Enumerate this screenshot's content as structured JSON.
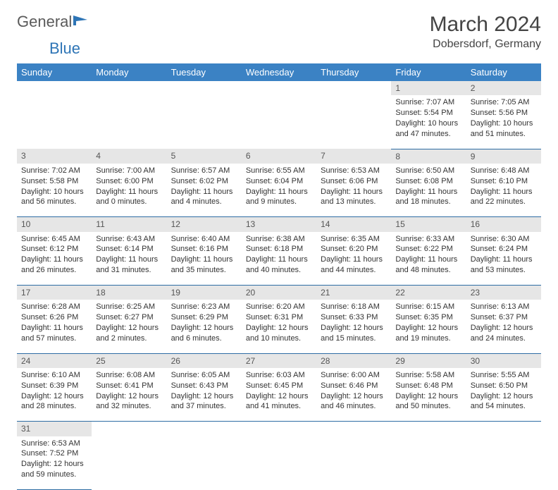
{
  "brand": {
    "part1": "General",
    "part2": "Blue"
  },
  "title": "March 2024",
  "location": "Dobersdorf, Germany",
  "colors": {
    "header_bg": "#3b82c4",
    "header_text": "#ffffff",
    "daynum_bg": "#e6e6e6",
    "row_border": "#2e6da4",
    "brand_gray": "#5a5a5a",
    "brand_blue": "#2e75b6"
  },
  "weekdays": [
    "Sunday",
    "Monday",
    "Tuesday",
    "Wednesday",
    "Thursday",
    "Friday",
    "Saturday"
  ],
  "weeks": [
    [
      null,
      null,
      null,
      null,
      null,
      {
        "n": "1",
        "sr": "Sunrise: 7:07 AM",
        "ss": "Sunset: 5:54 PM",
        "d1": "Daylight: 10 hours",
        "d2": "and 47 minutes."
      },
      {
        "n": "2",
        "sr": "Sunrise: 7:05 AM",
        "ss": "Sunset: 5:56 PM",
        "d1": "Daylight: 10 hours",
        "d2": "and 51 minutes."
      }
    ],
    [
      {
        "n": "3",
        "sr": "Sunrise: 7:02 AM",
        "ss": "Sunset: 5:58 PM",
        "d1": "Daylight: 10 hours",
        "d2": "and 56 minutes."
      },
      {
        "n": "4",
        "sr": "Sunrise: 7:00 AM",
        "ss": "Sunset: 6:00 PM",
        "d1": "Daylight: 11 hours",
        "d2": "and 0 minutes."
      },
      {
        "n": "5",
        "sr": "Sunrise: 6:57 AM",
        "ss": "Sunset: 6:02 PM",
        "d1": "Daylight: 11 hours",
        "d2": "and 4 minutes."
      },
      {
        "n": "6",
        "sr": "Sunrise: 6:55 AM",
        "ss": "Sunset: 6:04 PM",
        "d1": "Daylight: 11 hours",
        "d2": "and 9 minutes."
      },
      {
        "n": "7",
        "sr": "Sunrise: 6:53 AM",
        "ss": "Sunset: 6:06 PM",
        "d1": "Daylight: 11 hours",
        "d2": "and 13 minutes."
      },
      {
        "n": "8",
        "sr": "Sunrise: 6:50 AM",
        "ss": "Sunset: 6:08 PM",
        "d1": "Daylight: 11 hours",
        "d2": "and 18 minutes."
      },
      {
        "n": "9",
        "sr": "Sunrise: 6:48 AM",
        "ss": "Sunset: 6:10 PM",
        "d1": "Daylight: 11 hours",
        "d2": "and 22 minutes."
      }
    ],
    [
      {
        "n": "10",
        "sr": "Sunrise: 6:45 AM",
        "ss": "Sunset: 6:12 PM",
        "d1": "Daylight: 11 hours",
        "d2": "and 26 minutes."
      },
      {
        "n": "11",
        "sr": "Sunrise: 6:43 AM",
        "ss": "Sunset: 6:14 PM",
        "d1": "Daylight: 11 hours",
        "d2": "and 31 minutes."
      },
      {
        "n": "12",
        "sr": "Sunrise: 6:40 AM",
        "ss": "Sunset: 6:16 PM",
        "d1": "Daylight: 11 hours",
        "d2": "and 35 minutes."
      },
      {
        "n": "13",
        "sr": "Sunrise: 6:38 AM",
        "ss": "Sunset: 6:18 PM",
        "d1": "Daylight: 11 hours",
        "d2": "and 40 minutes."
      },
      {
        "n": "14",
        "sr": "Sunrise: 6:35 AM",
        "ss": "Sunset: 6:20 PM",
        "d1": "Daylight: 11 hours",
        "d2": "and 44 minutes."
      },
      {
        "n": "15",
        "sr": "Sunrise: 6:33 AM",
        "ss": "Sunset: 6:22 PM",
        "d1": "Daylight: 11 hours",
        "d2": "and 48 minutes."
      },
      {
        "n": "16",
        "sr": "Sunrise: 6:30 AM",
        "ss": "Sunset: 6:24 PM",
        "d1": "Daylight: 11 hours",
        "d2": "and 53 minutes."
      }
    ],
    [
      {
        "n": "17",
        "sr": "Sunrise: 6:28 AM",
        "ss": "Sunset: 6:26 PM",
        "d1": "Daylight: 11 hours",
        "d2": "and 57 minutes."
      },
      {
        "n": "18",
        "sr": "Sunrise: 6:25 AM",
        "ss": "Sunset: 6:27 PM",
        "d1": "Daylight: 12 hours",
        "d2": "and 2 minutes."
      },
      {
        "n": "19",
        "sr": "Sunrise: 6:23 AM",
        "ss": "Sunset: 6:29 PM",
        "d1": "Daylight: 12 hours",
        "d2": "and 6 minutes."
      },
      {
        "n": "20",
        "sr": "Sunrise: 6:20 AM",
        "ss": "Sunset: 6:31 PM",
        "d1": "Daylight: 12 hours",
        "d2": "and 10 minutes."
      },
      {
        "n": "21",
        "sr": "Sunrise: 6:18 AM",
        "ss": "Sunset: 6:33 PM",
        "d1": "Daylight: 12 hours",
        "d2": "and 15 minutes."
      },
      {
        "n": "22",
        "sr": "Sunrise: 6:15 AM",
        "ss": "Sunset: 6:35 PM",
        "d1": "Daylight: 12 hours",
        "d2": "and 19 minutes."
      },
      {
        "n": "23",
        "sr": "Sunrise: 6:13 AM",
        "ss": "Sunset: 6:37 PM",
        "d1": "Daylight: 12 hours",
        "d2": "and 24 minutes."
      }
    ],
    [
      {
        "n": "24",
        "sr": "Sunrise: 6:10 AM",
        "ss": "Sunset: 6:39 PM",
        "d1": "Daylight: 12 hours",
        "d2": "and 28 minutes."
      },
      {
        "n": "25",
        "sr": "Sunrise: 6:08 AM",
        "ss": "Sunset: 6:41 PM",
        "d1": "Daylight: 12 hours",
        "d2": "and 32 minutes."
      },
      {
        "n": "26",
        "sr": "Sunrise: 6:05 AM",
        "ss": "Sunset: 6:43 PM",
        "d1": "Daylight: 12 hours",
        "d2": "and 37 minutes."
      },
      {
        "n": "27",
        "sr": "Sunrise: 6:03 AM",
        "ss": "Sunset: 6:45 PM",
        "d1": "Daylight: 12 hours",
        "d2": "and 41 minutes."
      },
      {
        "n": "28",
        "sr": "Sunrise: 6:00 AM",
        "ss": "Sunset: 6:46 PM",
        "d1": "Daylight: 12 hours",
        "d2": "and 46 minutes."
      },
      {
        "n": "29",
        "sr": "Sunrise: 5:58 AM",
        "ss": "Sunset: 6:48 PM",
        "d1": "Daylight: 12 hours",
        "d2": "and 50 minutes."
      },
      {
        "n": "30",
        "sr": "Sunrise: 5:55 AM",
        "ss": "Sunset: 6:50 PM",
        "d1": "Daylight: 12 hours",
        "d2": "and 54 minutes."
      }
    ],
    [
      {
        "n": "31",
        "sr": "Sunrise: 6:53 AM",
        "ss": "Sunset: 7:52 PM",
        "d1": "Daylight: 12 hours",
        "d2": "and 59 minutes."
      },
      null,
      null,
      null,
      null,
      null,
      null
    ]
  ]
}
